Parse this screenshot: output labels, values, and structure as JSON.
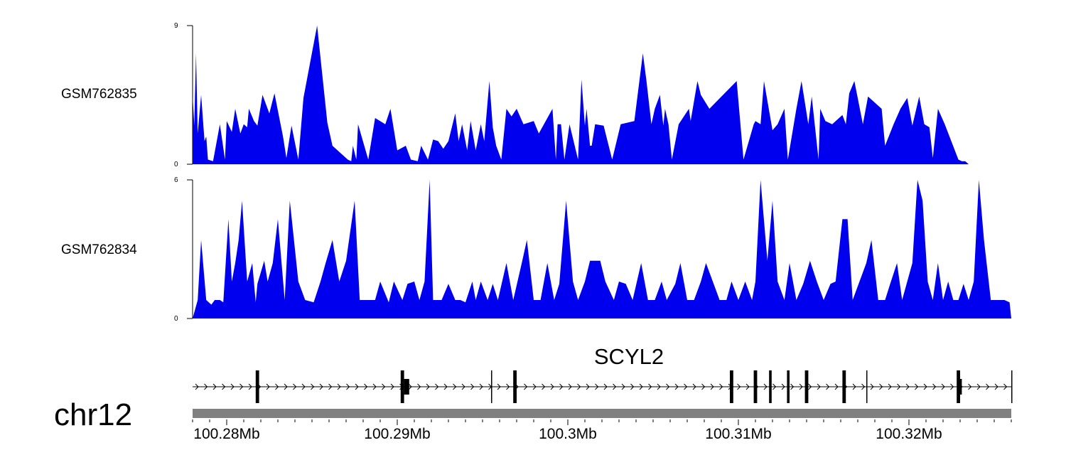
{
  "colors": {
    "coverage_fill": "#0000ee",
    "ideogram": "#808080",
    "axis": "#000000",
    "gene": "#000000"
  },
  "chart_data": {
    "type": "area",
    "genome_units": "kb",
    "xlim": [
      100278.0,
      100326.0
    ],
    "chromosome": "chr12",
    "gene": {
      "name": "SCYL2",
      "strand": "+",
      "start": 100278.0,
      "end": 100326.0,
      "exons": [
        {
          "start": 100281.7,
          "end": 100281.9
        },
        {
          "start": 100290.2,
          "end": 100290.4
        },
        {
          "start": 100290.4,
          "end": 100290.7
        },
        {
          "start": 100295.5,
          "end": 100295.55
        },
        {
          "start": 100296.8,
          "end": 100297.0
        },
        {
          "start": 100309.5,
          "end": 100309.7
        },
        {
          "start": 100310.9,
          "end": 100311.1
        },
        {
          "start": 100311.8,
          "end": 100311.95
        },
        {
          "start": 100312.85,
          "end": 100313.0
        },
        {
          "start": 100313.9,
          "end": 100314.1
        },
        {
          "start": 100316.1,
          "end": 100316.3
        },
        {
          "start": 100317.5,
          "end": 100317.55
        },
        {
          "start": 100322.8,
          "end": 100323.0
        },
        {
          "start": 100323.0,
          "end": 100323.1
        },
        {
          "start": 100326.0,
          "end": 100326.05
        }
      ]
    },
    "axis": {
      "ticks": [
        100280,
        100290,
        100300,
        100310,
        100320
      ],
      "tick_labels": [
        "100.28Mb",
        "100.29Mb",
        "100.3Mb",
        "100.31Mb",
        "100.32Mb"
      ],
      "minor_step": 1
    },
    "series": [
      {
        "name": "GSM762835",
        "ylim": [
          0,
          9
        ],
        "ytick_labels": [
          "9",
          "0"
        ],
        "x": [
          100278.0,
          100278.1,
          100278.2,
          100278.3,
          100278.5,
          100278.7,
          100278.8,
          100278.9,
          100279.2,
          100279.6,
          100279.9,
          100280.0,
          100280.3,
          100280.5,
          100280.8,
          100281.0,
          100281.2,
          100281.3,
          100281.6,
          100281.8,
          100282.1,
          100282.5,
          100282.8,
          100283.3,
          100283.5,
          100283.8,
          100284.2,
          100284.5,
          100285.3,
          100285.9,
          100286.2,
          100287.1,
          100287.3,
          100287.4,
          100287.6,
          100287.7,
          100288.3,
          100288.7,
          100289.3,
          100289.6,
          100290.0,
          100290.5,
          100290.8,
          100291.2,
          100291.4,
          100291.8,
          100292.1,
          100292.4,
          100292.7,
          100293.0,
          100293.4,
          100293.6,
          100293.8,
          100294.1,
          100294.3,
          100294.6,
          100294.9,
          100295.1,
          100295.4,
          100295.6,
          100295.8,
          100296.1,
          100296.4,
          100296.7,
          100297.0,
          100297.4,
          100298.0,
          100298.3,
          100298.6,
          100299.1,
          100299.3,
          100299.4,
          100299.6,
          100299.8,
          100300.1,
          100300.6,
          100300.8,
          100301.0,
          100301.1,
          100301.3,
          100301.4,
          100301.6,
          100302.1,
          100302.6,
          100303.1,
          100303.9,
          100304.4,
          100304.6,
          100304.9,
          100305.1,
          100305.4,
          100305.6,
          100305.7,
          100305.9,
          100306.1,
          100306.5,
          100307.1,
          100307.2,
          100307.6,
          100307.8,
          100308.3,
          100309.1,
          100309.9,
          100310.3,
          100310.9,
          100311.0,
          100311.3,
          100311.5,
          100312.0,
          100312.3,
          100312.7,
          100312.9,
          100313.4,
          100313.7,
          100314.1,
          100314.3,
          100314.7,
          100314.8,
          100315.1,
          100315.5,
          100316.1,
          100316.3,
          100316.5,
          100316.8,
          100317.3,
          100317.6,
          100318.4,
          100318.6,
          100319.1,
          100319.5,
          100319.9,
          100320.2,
          100320.6,
          100320.9,
          100321.2,
          100321.4,
          100321.7,
          100322.1,
          100322.9,
          100323.1,
          100323.3,
          100323.5
        ],
        "values": [
          4.5,
          2.5,
          7.2,
          2,
          4.5,
          1.5,
          1.8,
          0.3,
          0.2,
          2.6,
          0.3,
          2.8,
          2.1,
          3.6,
          2,
          2.6,
          2.4,
          3.6,
          2.8,
          2.5,
          4.5,
          3.3,
          4.6,
          1.8,
          0.4,
          2.5,
          0.3,
          4.3,
          9.0,
          2.7,
          1.2,
          0.3,
          0.2,
          1.2,
          0.3,
          2.6,
          0.3,
          3,
          2.6,
          3.6,
          0.9,
          1.2,
          0.3,
          0.2,
          1.2,
          0.3,
          1.6,
          1.5,
          1,
          1.5,
          3.3,
          1.5,
          2.6,
          0.9,
          2.8,
          0.9,
          2.6,
          1.5,
          5.4,
          2.4,
          1.2,
          0.3,
          3.6,
          3.1,
          3.6,
          2.6,
          2.8,
          2,
          2.6,
          3.6,
          0.3,
          2.6,
          2.6,
          0.3,
          2.6,
          0.3,
          5.5,
          2.5,
          3.6,
          1.2,
          1.2,
          2.6,
          2.5,
          0.3,
          2.6,
          2.8,
          7.2,
          5.5,
          2.6,
          3.6,
          4.5,
          2.5,
          3.6,
          2.6,
          0.3,
          2.6,
          3.6,
          2.8,
          5.4,
          4.5,
          3.6,
          4.5,
          5.4,
          0.3,
          2.6,
          2.8,
          2.6,
          5.4,
          2.2,
          2.6,
          3.6,
          0.3,
          3.6,
          5.4,
          2.6,
          4.4,
          0.3,
          3.6,
          2.8,
          2.6,
          3.2,
          2.6,
          4.6,
          5.4,
          2.6,
          4.4,
          3.6,
          1.2,
          2.6,
          3.6,
          4.3,
          2.5,
          4.4,
          2.6,
          2.4,
          0.4,
          3.6,
          2.6,
          0.3,
          0.2,
          0.2,
          0
        ]
      },
      {
        "name": "GSM762834",
        "ylim": [
          0,
          6
        ],
        "ytick_labels": [
          "6",
          "0"
        ],
        "x": [
          100278.0,
          100278.3,
          100278.5,
          100278.8,
          100279.1,
          100279.3,
          100279.6,
          100279.8,
          100280.1,
          100280.3,
          100280.5,
          100280.7,
          100280.9,
          100281.2,
          100281.5,
          100281.7,
          100281.8,
          100282.2,
          100282.4,
          100282.7,
          100283.0,
          100283.4,
          100283.7,
          100284.2,
          100284.6,
          100285.1,
          100285.5,
          100285.8,
          100286.2,
          100286.6,
          100287.0,
          100287.5,
          100287.8,
          100288.2,
          100288.7,
          100289.0,
          100289.5,
          100289.8,
          100290.3,
          100290.6,
          100291.0,
          100291.3,
          100291.6,
          100291.9,
          100292.1,
          100292.6,
          100293.0,
          100293.4,
          100293.7,
          100294.0,
          100294.4,
          100294.6,
          100294.9,
          100295.3,
          100295.6,
          100295.9,
          100296.4,
          100296.8,
          100297.3,
          100297.6,
          100298.0,
          100298.4,
          100298.8,
          100299.2,
          100299.5,
          100299.9,
          100300.3,
          100300.6,
          100301.0,
          100301.3,
          100301.6,
          100301.9,
          100302.2,
          100302.7,
          100303.0,
          100303.4,
          100303.8,
          100304.3,
          100304.7,
          100305.1,
          100305.5,
          100305.8,
          100306.3,
          100306.6,
          100307.0,
          100307.4,
          100307.8,
          100308.1,
          100308.5,
          100308.9,
          100309.3,
          100309.6,
          100310.0,
          100310.4,
          100310.8,
          100311.0,
          100311.3,
          100311.7,
          100312.0,
          100312.3,
          100312.7,
          100313.0,
          100313.4,
          100313.8,
          100314.2,
          100314.6,
          100315.0,
          100315.4,
          100315.7,
          100316.1,
          100316.4,
          100316.7,
          100317.1,
          100317.5,
          100317.8,
          100318.2,
          100318.6,
          100318.9,
          100319.3,
          100319.6,
          100319.9,
          100320.2,
          100320.5,
          100320.8,
          100321.1,
          100321.4,
          100321.7,
          100322.0,
          100322.3,
          100322.6,
          100322.9,
          100323.2,
          100323.5,
          100323.8,
          100324.1,
          100324.4,
          100324.8,
          100325.0,
          100325.3,
          100325.6,
          100325.9,
          100326.0
        ],
        "values": [
          0,
          0.8,
          3.4,
          0.8,
          0.6,
          0.8,
          0.8,
          0.7,
          4.3,
          1.6,
          2.4,
          3.4,
          5.1,
          1.6,
          2.4,
          0.7,
          1.5,
          2.5,
          1.6,
          2.4,
          4.3,
          0.8,
          5.1,
          1.6,
          0.8,
          0.7,
          1.6,
          2.4,
          3.4,
          1.6,
          2.5,
          5.1,
          0.8,
          0.8,
          0.8,
          1.6,
          0.7,
          1.6,
          0.8,
          1.5,
          1.6,
          0.8,
          1.6,
          6.0,
          0.8,
          0.8,
          1.5,
          0.8,
          0.8,
          0.7,
          1.6,
          0.8,
          1.6,
          0.8,
          1.5,
          0.8,
          2.4,
          0.8,
          2.4,
          3.4,
          0.8,
          0.8,
          2.4,
          0.8,
          1.5,
          5.1,
          1.6,
          0.8,
          1.6,
          2.5,
          2.5,
          2.5,
          1.6,
          0.8,
          1.6,
          1.5,
          0.8,
          2.4,
          0.8,
          0.8,
          1.6,
          0.8,
          1.5,
          2.4,
          0.8,
          0.8,
          1.6,
          2.4,
          1.6,
          0.8,
          0.8,
          1.6,
          0.8,
          1.6,
          0.8,
          1.6,
          6.0,
          2.5,
          5.1,
          1.6,
          0.8,
          2.4,
          0.8,
          1.5,
          2.5,
          1.6,
          0.8,
          1.5,
          1.6,
          4.3,
          4.3,
          0.8,
          1.6,
          2.4,
          3.4,
          0.8,
          0.8,
          1.5,
          2.4,
          0.8,
          1.6,
          2.4,
          6.0,
          5.1,
          1.6,
          0.8,
          2.4,
          0.8,
          1.6,
          0.8,
          0.8,
          1.5,
          0.8,
          1.6,
          6.0,
          3.4,
          0.8,
          0.8,
          0.8,
          0.8,
          0.7,
          0
        ]
      }
    ]
  }
}
